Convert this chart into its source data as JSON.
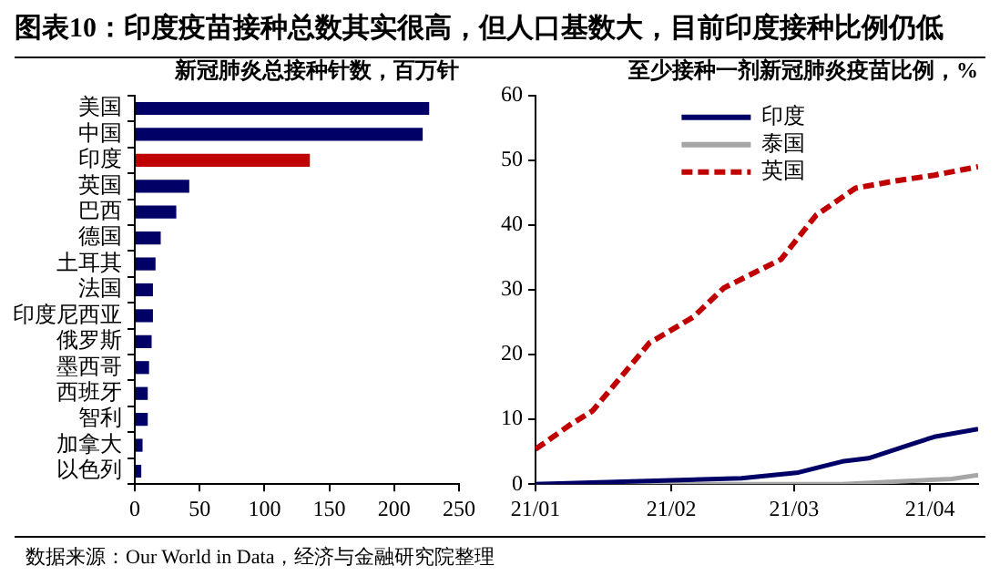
{
  "chart_data": [
    {
      "type": "bar",
      "orientation": "horizontal",
      "title": "图表10：印度疫苗接种总数其实很高，但人口基数大，目前印度接种比例仍低",
      "subtitle": "新冠肺炎总接种针数，百万针",
      "categories": [
        "美国",
        "中国",
        "印度",
        "英国",
        "巴西",
        "德国",
        "土耳其",
        "法国",
        "印度尼西亚",
        "俄罗斯",
        "墨西哥",
        "西班牙",
        "智利",
        "加拿大",
        "以色列"
      ],
      "values": [
        227,
        222,
        135,
        42,
        32,
        20,
        16,
        14,
        14,
        13,
        11,
        10,
        10,
        6,
        5
      ],
      "colors": [
        "#000066",
        "#000066",
        "#c00000",
        "#000066",
        "#000066",
        "#000066",
        "#000066",
        "#000066",
        "#000066",
        "#000066",
        "#000066",
        "#000066",
        "#000066",
        "#000066",
        "#000066"
      ],
      "xlim": [
        0,
        250
      ],
      "xticks": [
        0,
        50,
        100,
        150,
        200,
        250
      ],
      "grid": false,
      "legend": false,
      "annotations": [
        "数据来源：Our World in Data，经济与金融研究院整理"
      ]
    },
    {
      "type": "line",
      "title": "至少接种一剂新冠肺炎疫苗比例，%",
      "xlim": [
        "--01-01",
        "--04-12"
      ],
      "xticks": [
        {
          "value": "--01-01",
          "label": "21/01"
        },
        {
          "value": "--02-01",
          "label": "21/02"
        },
        {
          "value": "--03-01",
          "label": "21/03"
        },
        {
          "value": "--04-01",
          "label": "21/04"
        }
      ],
      "ylim": [
        0,
        60
      ],
      "yticks": [
        0,
        10,
        20,
        30,
        40,
        50,
        60
      ],
      "grid": false,
      "legend": "top",
      "marker": "none",
      "series": [
        {
          "name": "印度",
          "color": "#000066",
          "line_style": "solid",
          "x": [
            "--01-01",
            "--02-01",
            "--02-17",
            "--03-02",
            "--03-12",
            "--03-18",
            "--03-27",
            "--04-02",
            "--04-12"
          ],
          "values": [
            0,
            0.6,
            0.9,
            1.8,
            3.5,
            4,
            6,
            7.3,
            8.5
          ]
        },
        {
          "name": "泰国",
          "color": "#a6a6a6",
          "line_style": "solid",
          "x": [
            "--01-01",
            "--03-12",
            "--03-27",
            "--04-06",
            "--04-12"
          ],
          "values": [
            0,
            0,
            0.5,
            0.8,
            1.4
          ]
        },
        {
          "name": "英国",
          "color": "#c00000",
          "line_style": "dashed",
          "x": [
            "--01-01",
            "--01-09",
            "--01-14",
            "--01-27",
            "--02-06",
            "--02-13",
            "--02-26",
            "--03-06",
            "--03-15",
            "--03-24",
            "--04-02",
            "--04-12"
          ],
          "values": [
            5.4,
            9.2,
            11.3,
            21.8,
            25.8,
            30.3,
            34.7,
            41.5,
            45.7,
            46.8,
            47.7,
            49
          ]
        }
      ]
    }
  ]
}
